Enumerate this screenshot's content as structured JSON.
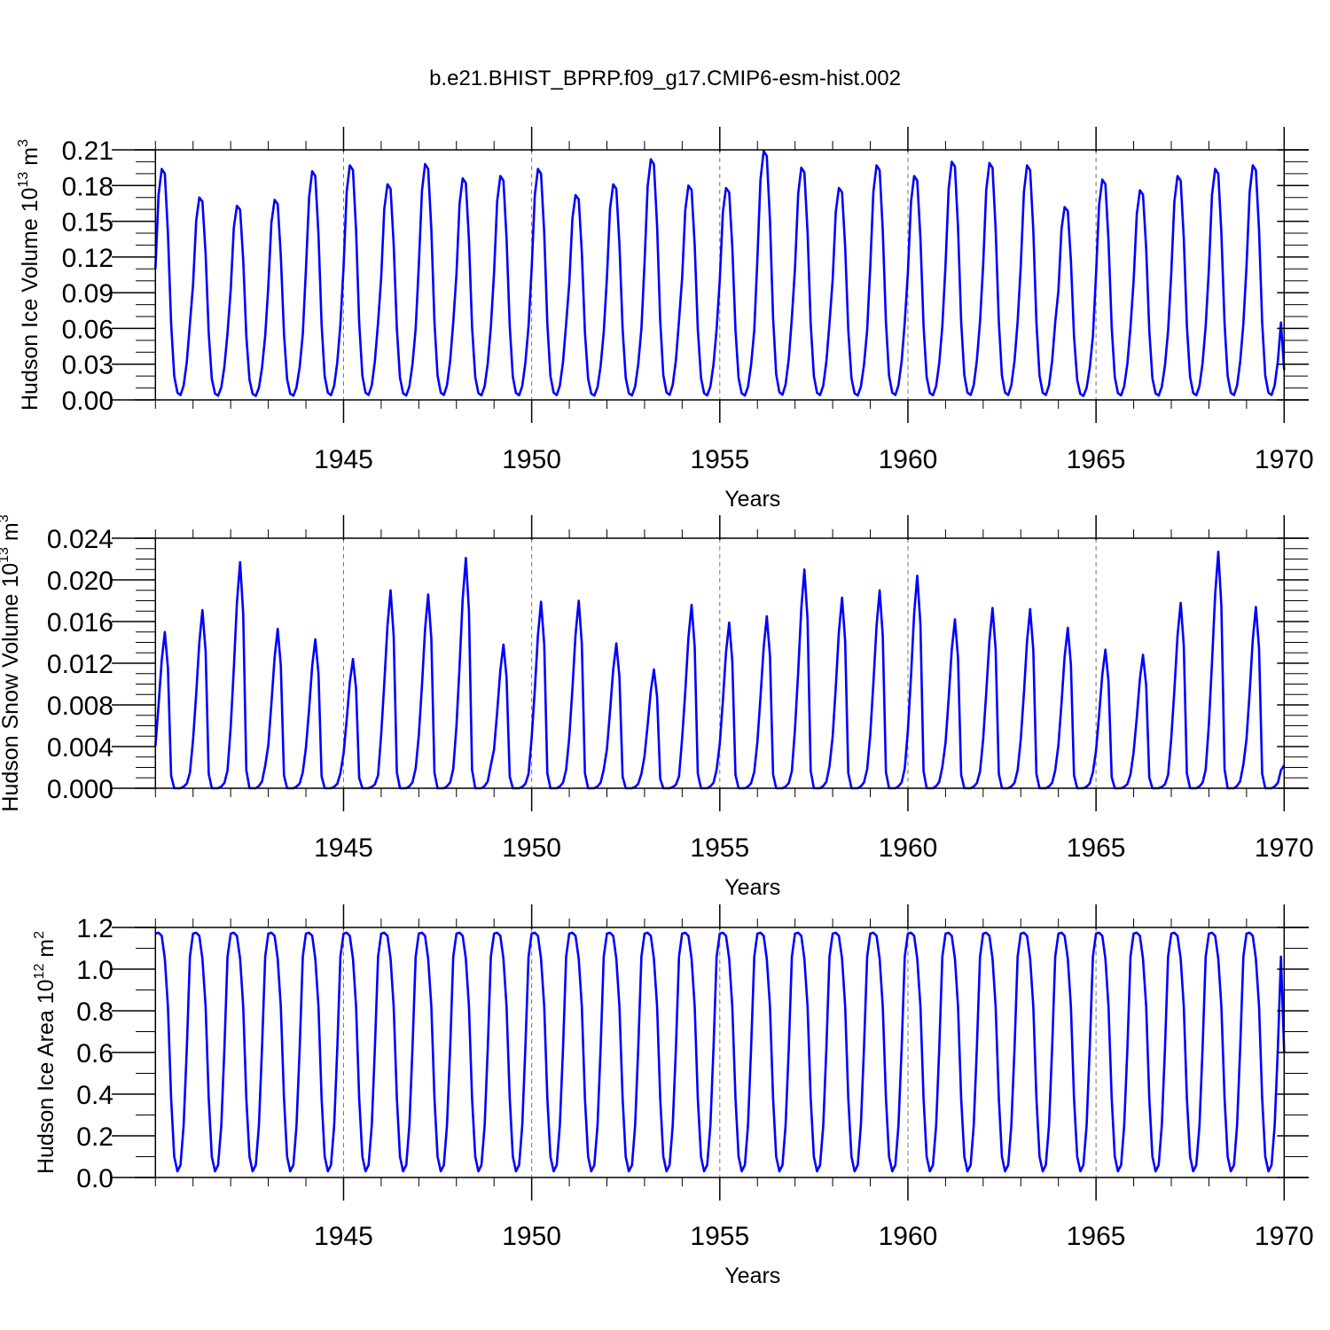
{
  "figure": {
    "title": "b.e21.BHIST_BPRP.f09_g17.CMIP6-esm-hist.002"
  },
  "colors": {
    "series": "#0000ff",
    "axes": "#000000",
    "grid": "#777777"
  },
  "chart_data": [
    {
      "type": "line",
      "title": "",
      "ylabel": {
        "main": "Hudson Ice Volume 10",
        "exp": "13",
        "unit": " m",
        "unit_exp": "3"
      },
      "xlabel": "Years",
      "xlim": [
        1940.0,
        1970.0
      ],
      "ylim": [
        0.0,
        0.21
      ],
      "y_ticks": [
        0.0,
        0.03,
        0.06,
        0.09,
        0.12,
        0.15,
        0.18,
        0.21
      ],
      "y_tick_labels": [
        "0.00",
        "0.03",
        "0.06",
        "0.09",
        "0.12",
        "0.15",
        "0.18",
        "0.21"
      ],
      "y_minor_step": 0.01,
      "x_ticks": [
        1945,
        1950,
        1955,
        1960,
        1965,
        1970
      ],
      "x_tick_labels": [
        "1945",
        "1950",
        "1955",
        "1960",
        "1965",
        "1970"
      ],
      "x_minor_step": 1,
      "x_grid": [
        1945,
        1950,
        1955,
        1960,
        1965
      ],
      "series_start": 1940.0,
      "series_step_years": 0.08333,
      "series_end_value": 0.025,
      "series_seasonal_shape": [
        0.55,
        0.86,
        0.97,
        0.95,
        0.7,
        0.32,
        0.1,
        0.03,
        0.02,
        0.06,
        0.16,
        0.32
      ],
      "series_annual_peak": [
        0.194,
        0.17,
        0.163,
        0.168,
        0.192,
        0.197,
        0.181,
        0.198,
        0.186,
        0.188,
        0.194,
        0.172,
        0.181,
        0.202,
        0.18,
        0.178,
        0.209,
        0.195,
        0.178,
        0.197,
        0.188,
        0.2,
        0.199,
        0.197,
        0.162,
        0.185,
        0.176,
        0.188,
        0.194,
        0.197
      ]
    },
    {
      "type": "line",
      "title": "",
      "ylabel": {
        "main": "Hudson Snow Volume 10",
        "exp": "13",
        "unit": " m",
        "unit_exp": "3"
      },
      "xlabel": "Years",
      "xlim": [
        1940.0,
        1970.0
      ],
      "ylim": [
        0.0,
        0.024
      ],
      "y_ticks": [
        0.0,
        0.004,
        0.008,
        0.012,
        0.016,
        0.02,
        0.024
      ],
      "y_tick_labels": [
        "0.000",
        "0.004",
        "0.008",
        "0.012",
        "0.016",
        "0.020",
        "0.024"
      ],
      "y_minor_step": 0.001,
      "x_ticks": [
        1945,
        1950,
        1955,
        1960,
        1965,
        1970
      ],
      "x_tick_labels": [
        "1945",
        "1950",
        "1955",
        "1960",
        "1965",
        "1970"
      ],
      "x_minor_step": 1,
      "x_grid": [
        1945,
        1950,
        1955,
        1960,
        1965
      ],
      "series_start": 1940.0,
      "series_step_years": 0.08333,
      "series_end_value": 0.0022,
      "series_seasonal_shape": [
        0.27,
        0.53,
        0.82,
        1.0,
        0.77,
        0.08,
        0.0,
        0.0,
        0.0,
        0.01,
        0.03,
        0.1
      ],
      "series_annual_peak": [
        0.015,
        0.0171,
        0.0217,
        0.0153,
        0.0143,
        0.0124,
        0.019,
        0.0186,
        0.0221,
        0.0138,
        0.0179,
        0.018,
        0.0139,
        0.0114,
        0.0176,
        0.0159,
        0.0165,
        0.021,
        0.0183,
        0.019,
        0.0204,
        0.0162,
        0.0173,
        0.0172,
        0.0154,
        0.0133,
        0.0128,
        0.0178,
        0.0227,
        0.0174
      ]
    },
    {
      "type": "line",
      "title": "",
      "ylabel": {
        "main": "Hudson Ice Area 10",
        "exp": "12",
        "unit": " m",
        "unit_exp": "2"
      },
      "xlabel": "Years",
      "xlim": [
        1940.0,
        1970.0
      ],
      "ylim": [
        0.0,
        1.2
      ],
      "y_ticks": [
        0.0,
        0.2,
        0.4,
        0.6,
        0.8,
        1.0,
        1.2
      ],
      "y_tick_labels": [
        "0.0",
        "0.2",
        "0.4",
        "0.6",
        "0.8",
        "1.0",
        "1.2"
      ],
      "y_minor_step": 0.1,
      "x_ticks": [
        1945,
        1950,
        1955,
        1960,
        1965,
        1970
      ],
      "x_tick_labels": [
        "1945",
        "1950",
        "1955",
        "1960",
        "1965",
        "1970"
      ],
      "x_minor_step": 1,
      "x_grid": [
        1945,
        1950,
        1955,
        1960,
        1965
      ],
      "series_start": 1940.0,
      "series_step_years": 0.08333,
      "series_end_value": 0.6,
      "series_seasonal_shape": [
        1.17,
        1.175,
        1.16,
        1.05,
        0.82,
        0.38,
        0.1,
        0.03,
        0.06,
        0.25,
        0.62,
        1.06
      ],
      "series_annual_peak": [
        1.175,
        1.175,
        1.175,
        1.175,
        1.175,
        1.175,
        1.175,
        1.175,
        1.175,
        1.175,
        1.175,
        1.175,
        1.175,
        1.175,
        1.175,
        1.175,
        1.175,
        1.175,
        1.175,
        1.175,
        1.175,
        1.175,
        1.175,
        1.175,
        1.175,
        1.175,
        1.175,
        1.175,
        1.175,
        1.175
      ]
    }
  ]
}
